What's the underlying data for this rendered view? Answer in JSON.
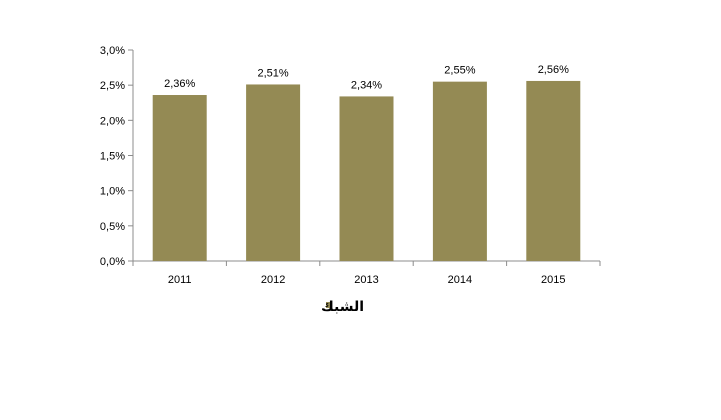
{
  "chart_data": {
    "type": "bar",
    "categories": [
      "2011",
      "2012",
      "2013",
      "2014",
      "2015"
    ],
    "series": [
      {
        "name": "الشبك",
        "values": [
          2.36,
          2.51,
          2.34,
          2.55,
          2.56
        ],
        "labels": [
          "2,36%",
          "2,51%",
          "2,34%",
          "2,55%",
          "2,56%"
        ]
      }
    ],
    "y_ticks": [
      "0,0%",
      "0,5%",
      "1,0%",
      "1,5%",
      "2,0%",
      "2,5%",
      "3,0%"
    ],
    "ylim": [
      0,
      3.0
    ],
    "grid": false,
    "legend_position": "bottom-center",
    "bar_color": "#948a54"
  }
}
